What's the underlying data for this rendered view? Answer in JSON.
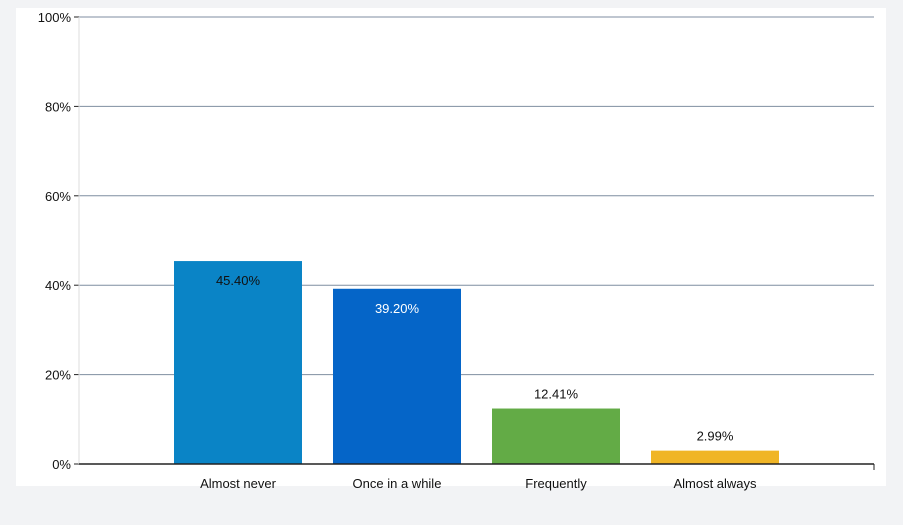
{
  "chart_data": {
    "type": "bar",
    "categories": [
      "Almost never",
      "Once in a while",
      "Frequently",
      "Almost always"
    ],
    "values": [
      45.4,
      39.2,
      12.41,
      2.99
    ],
    "data_labels": [
      "45.40%",
      "39.20%",
      "12.41%",
      "2.99%"
    ],
    "colors": [
      "#0a84c6",
      "#0565c8",
      "#63ab46",
      "#f0b526"
    ],
    "label_colors": [
      "#111111",
      "#ffffff",
      "#111111",
      "#111111"
    ],
    "ylim": [
      0,
      100
    ],
    "yticks": [
      0,
      20,
      40,
      60,
      80,
      100
    ],
    "ytick_labels": [
      "0%",
      "20%",
      "40%",
      "60%",
      "80%",
      "100%"
    ],
    "grid": true,
    "legend": "none"
  }
}
